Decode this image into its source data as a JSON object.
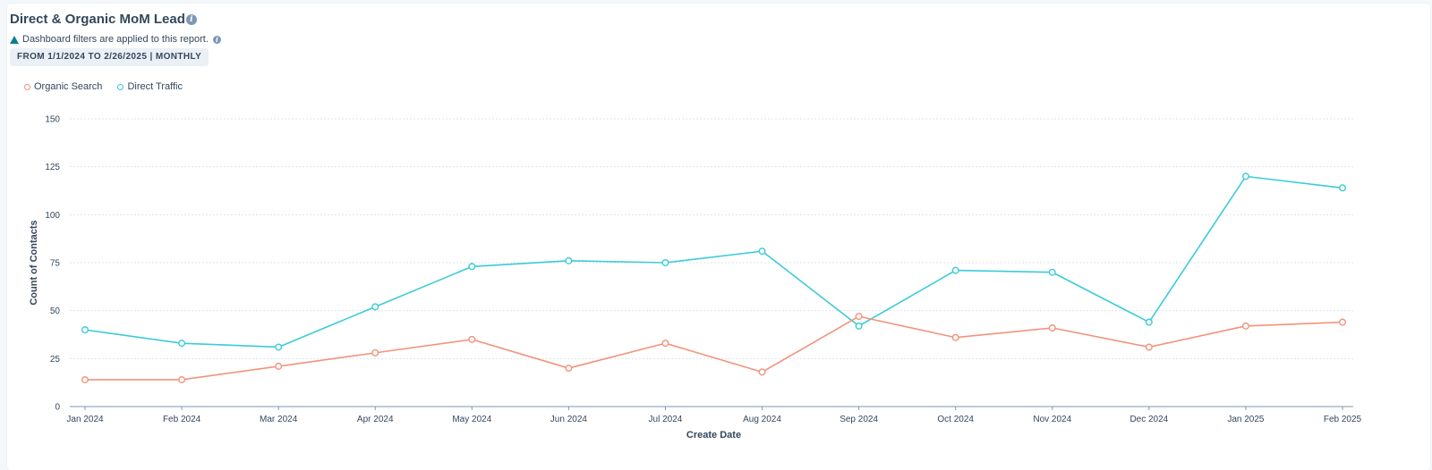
{
  "report": {
    "title": "Direct & Organic MoM Lead",
    "filter_notice": "Dashboard filters are applied to this report.",
    "date_range": "FROM 1/1/2024 TO 2/26/2025 | MONTHLY",
    "info_glyph": "i"
  },
  "chart_data": {
    "type": "line",
    "title": "Direct & Organic MoM Lead",
    "xlabel": "Create Date",
    "ylabel": "Count of Contacts",
    "ylim": [
      0,
      150
    ],
    "yticks": [
      0,
      25,
      50,
      75,
      100,
      125,
      150
    ],
    "grid": true,
    "legend_position": "top-left",
    "categories": [
      "Jan 2024",
      "Feb 2024",
      "Mar 2024",
      "Apr 2024",
      "May 2024",
      "Jun 2024",
      "Jul 2024",
      "Aug 2024",
      "Sep 2024",
      "Oct 2024",
      "Nov 2024",
      "Dec 2024",
      "Jan 2025",
      "Feb 2025"
    ],
    "series": [
      {
        "name": "Organic Search",
        "color": "#f2937b",
        "values": [
          14,
          14,
          21,
          28,
          35,
          20,
          33,
          18,
          47,
          36,
          41,
          31,
          42,
          44
        ]
      },
      {
        "name": "Direct Traffic",
        "color": "#3bcbd8",
        "values": [
          40,
          33,
          31,
          52,
          73,
          76,
          75,
          81,
          42,
          71,
          70,
          44,
          120,
          114
        ]
      }
    ]
  }
}
